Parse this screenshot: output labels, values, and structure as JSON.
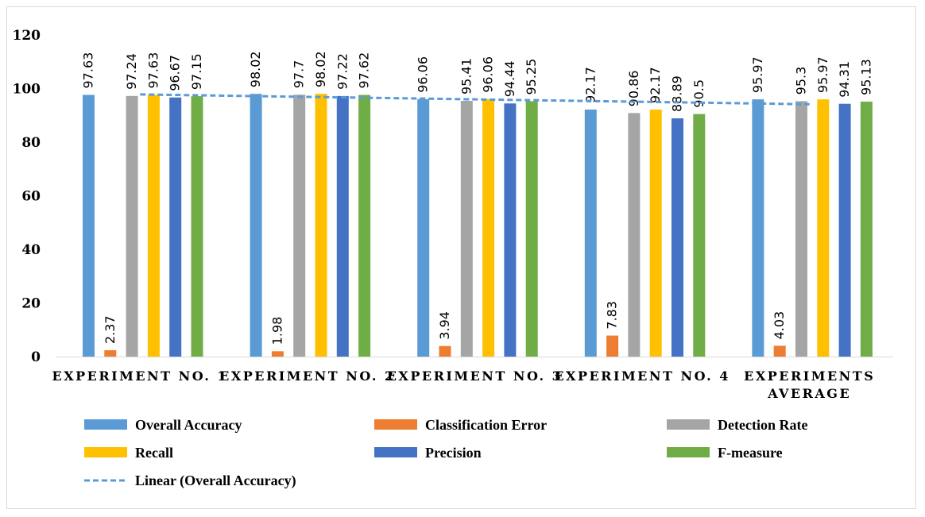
{
  "chart_data": {
    "type": "bar",
    "title": "",
    "xlabel": "",
    "ylabel": "",
    "ylim": [
      0,
      120
    ],
    "yticks": [
      0,
      20,
      40,
      60,
      80,
      100,
      120
    ],
    "categories": [
      [
        "EXPERIMENT NO. 1"
      ],
      [
        "EXPERIMENT NO. 2"
      ],
      [
        "EXPERIMENT NO. 3"
      ],
      [
        "EXPERIMENT NO. 4"
      ],
      [
        "EXPERIMENTS",
        "AVERAGE"
      ]
    ],
    "series": [
      {
        "name": "Overall Accuracy",
        "color": "#5B9BD5",
        "values": [
          97.63,
          98.02,
          96.06,
          92.17,
          95.97
        ]
      },
      {
        "name": "Classification Error",
        "color": "#ED7D31",
        "values": [
          2.37,
          1.98,
          3.94,
          7.83,
          4.03
        ]
      },
      {
        "name": "Detection Rate",
        "color": "#A5A5A5",
        "values": [
          97.24,
          97.7,
          95.41,
          90.86,
          95.3
        ]
      },
      {
        "name": "Recall",
        "color": "#FFC000",
        "values": [
          97.63,
          98.02,
          96.06,
          92.17,
          95.97
        ]
      },
      {
        "name": "Precision",
        "color": "#4472C4",
        "values": [
          96.67,
          97.22,
          94.44,
          88.89,
          94.31
        ]
      },
      {
        "name": "F-measure",
        "color": "#70AD47",
        "values": [
          97.15,
          97.62,
          95.25,
          90.5,
          95.13
        ]
      }
    ],
    "trendline": {
      "name": "Linear (Overall Accuracy)",
      "of_series": "Overall Accuracy",
      "style": "dashed",
      "color": "#5B9BD5"
    },
    "grid": false,
    "legend": "bottom"
  }
}
